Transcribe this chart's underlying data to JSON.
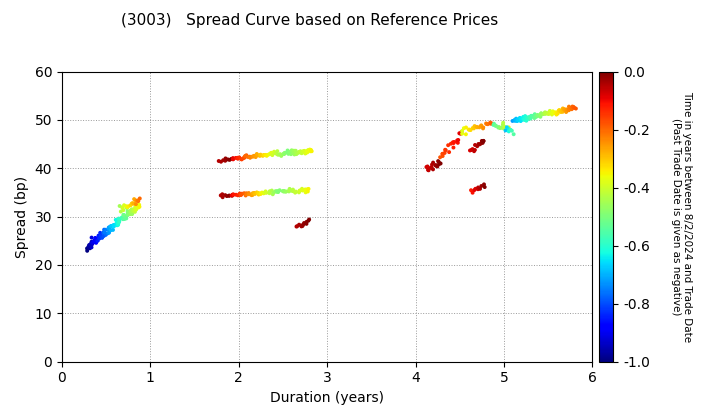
{
  "title": "(3003)   Spread Curve based on Reference Prices",
  "xlabel": "Duration (years)",
  "ylabel": "Spread (bp)",
  "colorbar_label": "Time in years between 8/2/2024 and Trade Date\n(Past Trade Date is given as negative)",
  "xlim": [
    0,
    6
  ],
  "ylim": [
    0,
    60
  ],
  "xticks": [
    0,
    1,
    2,
    3,
    4,
    5,
    6
  ],
  "yticks": [
    0,
    10,
    20,
    30,
    40,
    50,
    60
  ],
  "cmap": "jet",
  "vmin": -1.0,
  "vmax": 0.0,
  "colorbar_ticks": [
    0.0,
    -0.2,
    -0.4,
    -0.6,
    -0.8,
    -1.0
  ],
  "background_color": "white",
  "marker_size": 8
}
